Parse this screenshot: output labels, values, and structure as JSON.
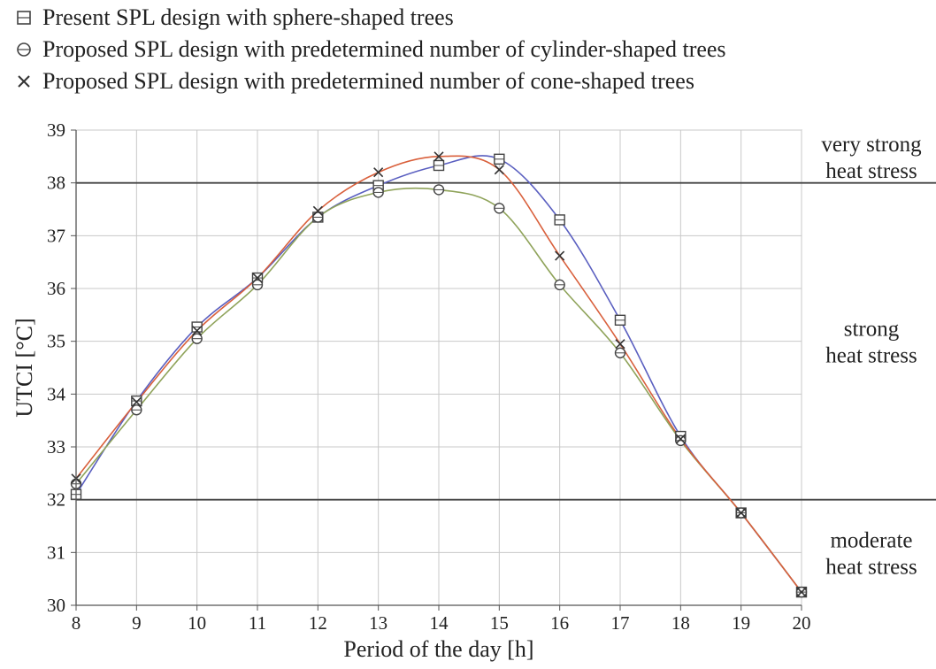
{
  "chart_data": {
    "type": "line",
    "x": [
      8,
      9,
      10,
      11,
      12,
      13,
      14,
      15,
      16,
      17,
      18,
      19,
      20
    ],
    "xlabel": "Period of the day [h]",
    "ylabel": "UTCI [°C]",
    "xlim": [
      8,
      20
    ],
    "ylim": [
      30,
      39
    ],
    "x_ticks": [
      "8",
      "9",
      "10",
      "11",
      "12",
      "13",
      "14",
      "15",
      "16",
      "17",
      "18",
      "19",
      "20"
    ],
    "y_ticks": [
      "30",
      "31",
      "32",
      "33",
      "34",
      "35",
      "36",
      "37",
      "38",
      "39"
    ],
    "grid": "vertical and horizontal",
    "legend_position": "top-left",
    "series": [
      {
        "name": "Present SPL design with sphere-shaped trees",
        "marker": "square",
        "color": "#5a5fc0",
        "values": [
          32.1,
          33.87,
          35.27,
          36.2,
          37.35,
          37.95,
          38.33,
          38.45,
          37.3,
          35.4,
          33.2,
          31.75,
          30.25
        ]
      },
      {
        "name": "Proposed SPL design with predetermined number of cylinder-shaped trees",
        "marker": "circle",
        "color": "#8fa35a",
        "values": [
          32.3,
          33.7,
          35.05,
          36.07,
          37.35,
          37.82,
          37.87,
          37.52,
          36.07,
          34.78,
          33.12,
          31.75,
          30.25
        ]
      },
      {
        "name": "Proposed SPL design with predetermined number of cone-shaped trees",
        "marker": "cross",
        "color": "#d9603c",
        "values": [
          32.4,
          33.85,
          35.2,
          36.2,
          37.47,
          38.2,
          38.5,
          38.25,
          36.62,
          34.95,
          33.15,
          31.75,
          30.25
        ]
      }
    ],
    "threshold_lines": [
      38,
      32
    ],
    "zones": [
      {
        "lines": [
          "very strong",
          "heat stress"
        ]
      },
      {
        "lines": [
          "strong",
          "heat stress"
        ]
      },
      {
        "lines": [
          "moderate",
          "heat stress"
        ]
      }
    ]
  }
}
